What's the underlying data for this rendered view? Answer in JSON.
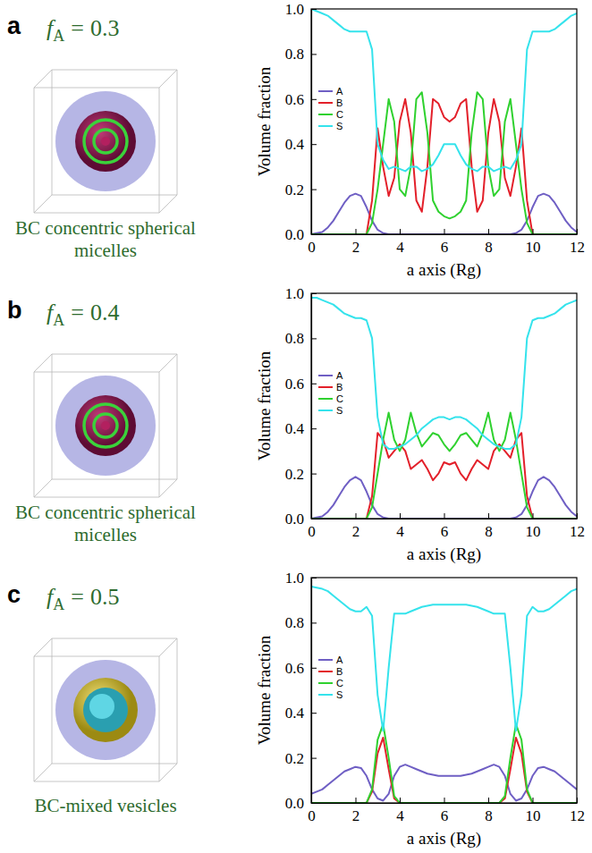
{
  "chart_data": [
    {
      "type": "line",
      "panel": "a",
      "parameter": {
        "symbol": "f",
        "subscript": "A",
        "relation": "=",
        "value": 0.3
      },
      "caption": "BC concentric spherical micelles",
      "x_label": "a axis (Rg)",
      "y_label": "Volume fraction",
      "xlim": [
        0,
        12
      ],
      "ylim": [
        0,
        1
      ],
      "xticks": [
        0,
        2,
        4,
        6,
        8,
        10,
        12
      ],
      "yticks": [
        {
          "value": 0,
          "label": "0.0"
        },
        0.2,
        0.4,
        0.6,
        0.8,
        {
          "value": 1,
          "label": "1.0"
        }
      ],
      "grid": false,
      "legend": "upper left",
      "x": [
        0,
        0.25,
        0.5,
        0.75,
        1,
        1.25,
        1.5,
        1.75,
        2,
        2.25,
        2.5,
        2.75,
        3,
        3.25,
        3.5,
        3.75,
        4,
        4.25,
        4.5,
        4.75,
        5,
        5.25,
        5.5,
        5.75,
        6,
        6.25,
        6.5,
        6.75,
        7,
        7.25,
        7.5,
        7.75,
        8,
        8.25,
        8.5,
        8.75,
        9,
        9.25,
        9.5,
        9.75,
        10,
        10.25,
        10.5,
        10.75,
        11,
        11.25,
        11.5,
        11.75,
        12
      ],
      "series": [
        {
          "name": "A",
          "color": "#6f5fc4",
          "values": [
            0,
            0.005,
            0.01,
            0.03,
            0.06,
            0.1,
            0.14,
            0.17,
            0.18,
            0.17,
            0.12,
            0.06,
            0.02,
            0.005,
            0,
            0,
            0,
            0,
            0,
            0,
            0,
            0,
            0,
            0,
            0,
            0,
            0,
            0,
            0,
            0,
            0,
            0,
            0,
            0,
            0,
            0,
            0,
            0.005,
            0.02,
            0.06,
            0.12,
            0.17,
            0.18,
            0.17,
            0.14,
            0.1,
            0.06,
            0.03,
            0.01
          ]
        },
        {
          "name": "B",
          "color": "#e3202a",
          "values": [
            0,
            0,
            0,
            0,
            0,
            0,
            0,
            0,
            0,
            0,
            0,
            0.15,
            0.47,
            0.3,
            0.17,
            0.25,
            0.5,
            0.6,
            0.45,
            0.15,
            0.1,
            0.3,
            0.6,
            0.58,
            0.52,
            0.5,
            0.52,
            0.58,
            0.6,
            0.3,
            0.1,
            0.15,
            0.45,
            0.6,
            0.5,
            0.25,
            0.17,
            0.3,
            0.47,
            0.15,
            0,
            0,
            0,
            0,
            0,
            0,
            0,
            0,
            0
          ]
        },
        {
          "name": "C",
          "color": "#2fd12f",
          "values": [
            0,
            0,
            0,
            0,
            0,
            0,
            0,
            0,
            0,
            0,
            0,
            0.05,
            0.2,
            0.4,
            0.6,
            0.5,
            0.2,
            0.17,
            0.3,
            0.6,
            0.63,
            0.45,
            0.15,
            0.1,
            0.08,
            0.07,
            0.08,
            0.1,
            0.15,
            0.45,
            0.63,
            0.6,
            0.3,
            0.17,
            0.2,
            0.5,
            0.6,
            0.4,
            0.2,
            0.05,
            0,
            0,
            0,
            0,
            0,
            0,
            0,
            0,
            0
          ]
        },
        {
          "name": "S",
          "color": "#35e3ec",
          "values": [
            1,
            0.99,
            0.98,
            0.97,
            0.95,
            0.93,
            0.91,
            0.9,
            0.9,
            0.9,
            0.9,
            0.82,
            0.4,
            0.33,
            0.29,
            0.3,
            0.29,
            0.28,
            0.3,
            0.3,
            0.28,
            0.29,
            0.31,
            0.35,
            0.4,
            0.4,
            0.4,
            0.35,
            0.31,
            0.29,
            0.28,
            0.3,
            0.3,
            0.28,
            0.29,
            0.3,
            0.29,
            0.33,
            0.4,
            0.82,
            0.9,
            0.9,
            0.9,
            0.9,
            0.91,
            0.93,
            0.95,
            0.97,
            0.98
          ]
        }
      ]
    },
    {
      "type": "line",
      "panel": "b",
      "parameter": {
        "symbol": "f",
        "subscript": "A",
        "relation": "=",
        "value": 0.4
      },
      "caption": "BC concentric spherical micelles",
      "x_label": "a axis (Rg)",
      "y_label": "Volume fraction",
      "xlim": [
        0,
        12
      ],
      "ylim": [
        0,
        1
      ],
      "xticks": [
        0,
        2,
        4,
        6,
        8,
        10,
        12
      ],
      "yticks": [
        {
          "value": 0,
          "label": "0.0"
        },
        0.2,
        0.4,
        0.6,
        0.8,
        {
          "value": 1,
          "label": "1.0"
        }
      ],
      "grid": false,
      "legend": "upper left",
      "x": [
        0,
        0.25,
        0.5,
        0.75,
        1,
        1.25,
        1.5,
        1.75,
        2,
        2.25,
        2.5,
        2.75,
        3,
        3.25,
        3.5,
        3.75,
        4,
        4.25,
        4.5,
        4.75,
        5,
        5.25,
        5.5,
        5.75,
        6,
        6.25,
        6.5,
        6.75,
        7,
        7.25,
        7.5,
        7.75,
        8,
        8.25,
        8.5,
        8.75,
        9,
        9.25,
        9.5,
        9.75,
        10,
        10.25,
        10.5,
        10.75,
        11,
        11.25,
        11.5,
        11.75,
        12
      ],
      "series": [
        {
          "name": "A",
          "color": "#6f5fc4",
          "values": [
            0,
            0.005,
            0.01,
            0.03,
            0.06,
            0.1,
            0.14,
            0.17,
            0.185,
            0.17,
            0.12,
            0.06,
            0.02,
            0.005,
            0,
            0,
            0,
            0,
            0,
            0,
            0,
            0,
            0,
            0,
            0,
            0,
            0,
            0,
            0,
            0,
            0,
            0,
            0,
            0,
            0,
            0,
            0,
            0.005,
            0.02,
            0.06,
            0.12,
            0.17,
            0.185,
            0.17,
            0.14,
            0.1,
            0.06,
            0.03,
            0.01
          ]
        },
        {
          "name": "B",
          "color": "#e3202a",
          "values": [
            0,
            0,
            0,
            0,
            0,
            0,
            0,
            0,
            0,
            0,
            0,
            0.1,
            0.38,
            0.35,
            0.27,
            0.3,
            0.33,
            0.3,
            0.22,
            0.24,
            0.26,
            0.22,
            0.17,
            0.2,
            0.25,
            0.24,
            0.25,
            0.2,
            0.17,
            0.22,
            0.26,
            0.24,
            0.22,
            0.3,
            0.33,
            0.3,
            0.27,
            0.35,
            0.38,
            0.1,
            0,
            0,
            0,
            0,
            0,
            0,
            0,
            0,
            0
          ]
        },
        {
          "name": "C",
          "color": "#2fd12f",
          "values": [
            0,
            0,
            0,
            0,
            0,
            0,
            0,
            0,
            0,
            0,
            0,
            0.05,
            0.2,
            0.35,
            0.47,
            0.35,
            0.3,
            0.35,
            0.47,
            0.38,
            0.32,
            0.35,
            0.38,
            0.37,
            0.33,
            0.3,
            0.33,
            0.37,
            0.38,
            0.35,
            0.32,
            0.38,
            0.47,
            0.35,
            0.3,
            0.35,
            0.47,
            0.35,
            0.2,
            0.05,
            0,
            0,
            0,
            0,
            0,
            0,
            0,
            0,
            0
          ]
        },
        {
          "name": "S",
          "color": "#35e3ec",
          "values": [
            0.98,
            0.98,
            0.97,
            0.96,
            0.95,
            0.93,
            0.91,
            0.9,
            0.89,
            0.89,
            0.88,
            0.8,
            0.45,
            0.33,
            0.31,
            0.31,
            0.32,
            0.33,
            0.35,
            0.37,
            0.4,
            0.42,
            0.44,
            0.45,
            0.45,
            0.44,
            0.45,
            0.45,
            0.44,
            0.42,
            0.4,
            0.37,
            0.35,
            0.33,
            0.32,
            0.31,
            0.31,
            0.33,
            0.45,
            0.8,
            0.88,
            0.89,
            0.89,
            0.9,
            0.91,
            0.93,
            0.95,
            0.96,
            0.97
          ]
        }
      ]
    },
    {
      "type": "line",
      "panel": "c",
      "parameter": {
        "symbol": "f",
        "subscript": "A",
        "relation": "=",
        "value": 0.5
      },
      "caption": "BC-mixed vesicles",
      "x_label": "a axis (Rg)",
      "y_label": "Volume fraction",
      "xlim": [
        0,
        12
      ],
      "ylim": [
        0,
        1
      ],
      "xticks": [
        0,
        2,
        4,
        6,
        8,
        10,
        12
      ],
      "yticks": [
        {
          "value": 0,
          "label": "0.0"
        },
        0.2,
        0.4,
        0.6,
        0.8,
        {
          "value": 1,
          "label": "1.0"
        }
      ],
      "grid": false,
      "legend": "upper left",
      "x": [
        0,
        0.25,
        0.5,
        0.75,
        1,
        1.25,
        1.5,
        1.75,
        2,
        2.25,
        2.5,
        2.75,
        3,
        3.25,
        3.5,
        3.75,
        4,
        4.25,
        4.5,
        4.75,
        5,
        5.25,
        5.5,
        5.75,
        6,
        6.25,
        6.5,
        6.75,
        7,
        7.25,
        7.5,
        7.75,
        8,
        8.25,
        8.5,
        8.75,
        9,
        9.25,
        9.5,
        9.75,
        10,
        10.25,
        10.5,
        10.75,
        11,
        11.25,
        11.5,
        11.75,
        12
      ],
      "series": [
        {
          "name": "A",
          "color": "#6f5fc4",
          "values": [
            0.04,
            0.05,
            0.06,
            0.08,
            0.1,
            0.12,
            0.14,
            0.15,
            0.16,
            0.155,
            0.12,
            0.06,
            0.02,
            0.01,
            0.04,
            0.12,
            0.16,
            0.17,
            0.16,
            0.15,
            0.14,
            0.13,
            0.125,
            0.12,
            0.12,
            0.12,
            0.12,
            0.12,
            0.125,
            0.13,
            0.14,
            0.15,
            0.16,
            0.17,
            0.16,
            0.12,
            0.04,
            0.01,
            0.02,
            0.06,
            0.12,
            0.155,
            0.16,
            0.15,
            0.14,
            0.12,
            0.1,
            0.08,
            0.06
          ]
        },
        {
          "name": "B",
          "color": "#e3202a",
          "values": [
            0,
            0,
            0,
            0,
            0,
            0,
            0,
            0,
            0,
            0,
            0,
            0.05,
            0.22,
            0.29,
            0.15,
            0.02,
            0,
            0,
            0,
            0,
            0,
            0,
            0,
            0,
            0,
            0,
            0,
            0,
            0,
            0,
            0,
            0,
            0,
            0,
            0,
            0.02,
            0.15,
            0.29,
            0.22,
            0.05,
            0,
            0,
            0,
            0,
            0,
            0,
            0,
            0,
            0
          ]
        },
        {
          "name": "C",
          "color": "#2fd12f",
          "values": [
            0,
            0,
            0,
            0,
            0,
            0,
            0,
            0,
            0,
            0,
            0,
            0.06,
            0.28,
            0.35,
            0.2,
            0.03,
            0,
            0,
            0,
            0,
            0,
            0,
            0,
            0,
            0,
            0,
            0,
            0,
            0,
            0,
            0,
            0,
            0,
            0,
            0,
            0.03,
            0.2,
            0.35,
            0.28,
            0.06,
            0,
            0,
            0,
            0,
            0,
            0,
            0,
            0,
            0
          ]
        },
        {
          "name": "S",
          "color": "#35e3ec",
          "values": [
            0.96,
            0.955,
            0.95,
            0.94,
            0.92,
            0.9,
            0.88,
            0.86,
            0.85,
            0.85,
            0.87,
            0.83,
            0.48,
            0.32,
            0.6,
            0.84,
            0.84,
            0.84,
            0.85,
            0.86,
            0.87,
            0.875,
            0.88,
            0.88,
            0.88,
            0.88,
            0.88,
            0.88,
            0.88,
            0.875,
            0.87,
            0.86,
            0.85,
            0.84,
            0.84,
            0.84,
            0.6,
            0.32,
            0.48,
            0.83,
            0.87,
            0.85,
            0.85,
            0.86,
            0.88,
            0.9,
            0.92,
            0.94,
            0.95
          ]
        }
      ]
    }
  ]
}
